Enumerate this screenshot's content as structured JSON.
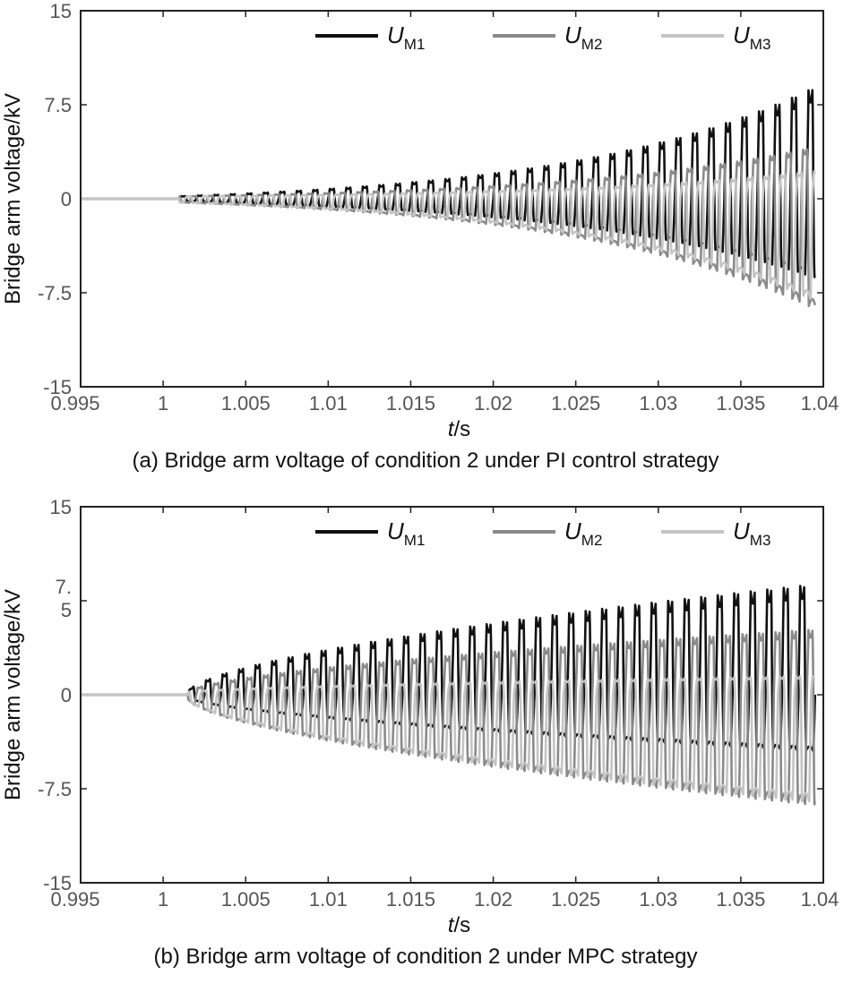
{
  "chart_data": [
    {
      "id": "a",
      "type": "line",
      "caption": "(a) Bridge arm voltage of condition 2 under PI control strategy",
      "xlabel_italic": "t",
      "xlabel_unit": "/s",
      "ylabel": "Bridge arm voltage/kV",
      "xlim": [
        0.995,
        1.04
      ],
      "ylim": [
        -15,
        15
      ],
      "xticks": [
        0.995,
        1,
        1.005,
        1.01,
        1.015,
        1.02,
        1.025,
        1.03,
        1.035,
        1.04
      ],
      "xtick_labels": [
        "0.995",
        "1",
        "1.005",
        "1.01",
        "1.015",
        "1.02",
        "1.025",
        "1.03",
        "1.035",
        "1.04"
      ],
      "yticks": [
        15,
        7.5,
        0,
        -7.5,
        -15
      ],
      "ytick_labels": [
        "15",
        "7.5",
        "0",
        "-7.5",
        "-15"
      ],
      "legend": {
        "position": "top"
      },
      "signal": {
        "start": 1.001,
        "period": 0.001,
        "end": 1.0395,
        "growth": "exp"
      },
      "series": [
        {
          "name": "U",
          "sub": "M1",
          "color": "#111111",
          "phase": 0,
          "peak_start": 0.2,
          "peak_end": 8.9,
          "trough_start": -0.2,
          "trough_end": -6.3
        },
        {
          "name": "U",
          "sub": "M2",
          "color": "#8a8a8a",
          "phase": 0.333,
          "peak_start": 0.2,
          "peak_end": 4.2,
          "trough_start": -0.3,
          "trough_end": -8.8
        },
        {
          "name": "U",
          "sub": "M3",
          "color": "#c4c4c4",
          "phase": 0.667,
          "peak_start": 0.2,
          "peak_end": 2.2,
          "trough_start": -0.3,
          "trough_end": -8.2
        }
      ]
    },
    {
      "id": "b",
      "type": "line",
      "caption": "(b) Bridge arm voltage of condition 2 under MPC strategy",
      "xlabel_italic": "t",
      "xlabel_unit": "/s",
      "ylabel": "Bridge arm voltage/kV",
      "xlim": [
        0.995,
        1.04
      ],
      "ylim": [
        -15,
        15
      ],
      "xticks": [
        0.995,
        1,
        1.005,
        1.01,
        1.015,
        1.02,
        1.025,
        1.03,
        1.035,
        1.04
      ],
      "xtick_labels": [
        "0.995",
        "1",
        "1.005",
        "1.01",
        "1.015",
        "1.02",
        "1.025",
        "1.03",
        "1.035",
        "1.04"
      ],
      "yticks": [
        15,
        7.5,
        0,
        -7.5,
        -15
      ],
      "ytick_labels": [
        "15",
        "7.\n5",
        "0",
        "-7.5",
        "-15"
      ],
      "legend": {
        "position": "top"
      },
      "signal": {
        "start": 1.0015,
        "period": 0.001,
        "end": 1.0395,
        "growth": "sqrt"
      },
      "series": [
        {
          "name": "U",
          "sub": "M1",
          "color": "#111111",
          "phase": 0,
          "peak_start": 0.2,
          "peak_end": 8.8,
          "trough_start": -0.2,
          "trough_end": -4.5
        },
        {
          "name": "U",
          "sub": "M2",
          "color": "#8a8a8a",
          "phase": 0.5,
          "peak_start": 0.2,
          "peak_end": 5.2,
          "trough_start": -0.3,
          "trough_end": -8.8
        },
        {
          "name": "U",
          "sub": "M3",
          "color": "#c4c4c4",
          "phase": 0.25,
          "peak_start": 0.2,
          "peak_end": 1.5,
          "trough_start": -0.3,
          "trough_end": -8.6
        }
      ]
    }
  ]
}
